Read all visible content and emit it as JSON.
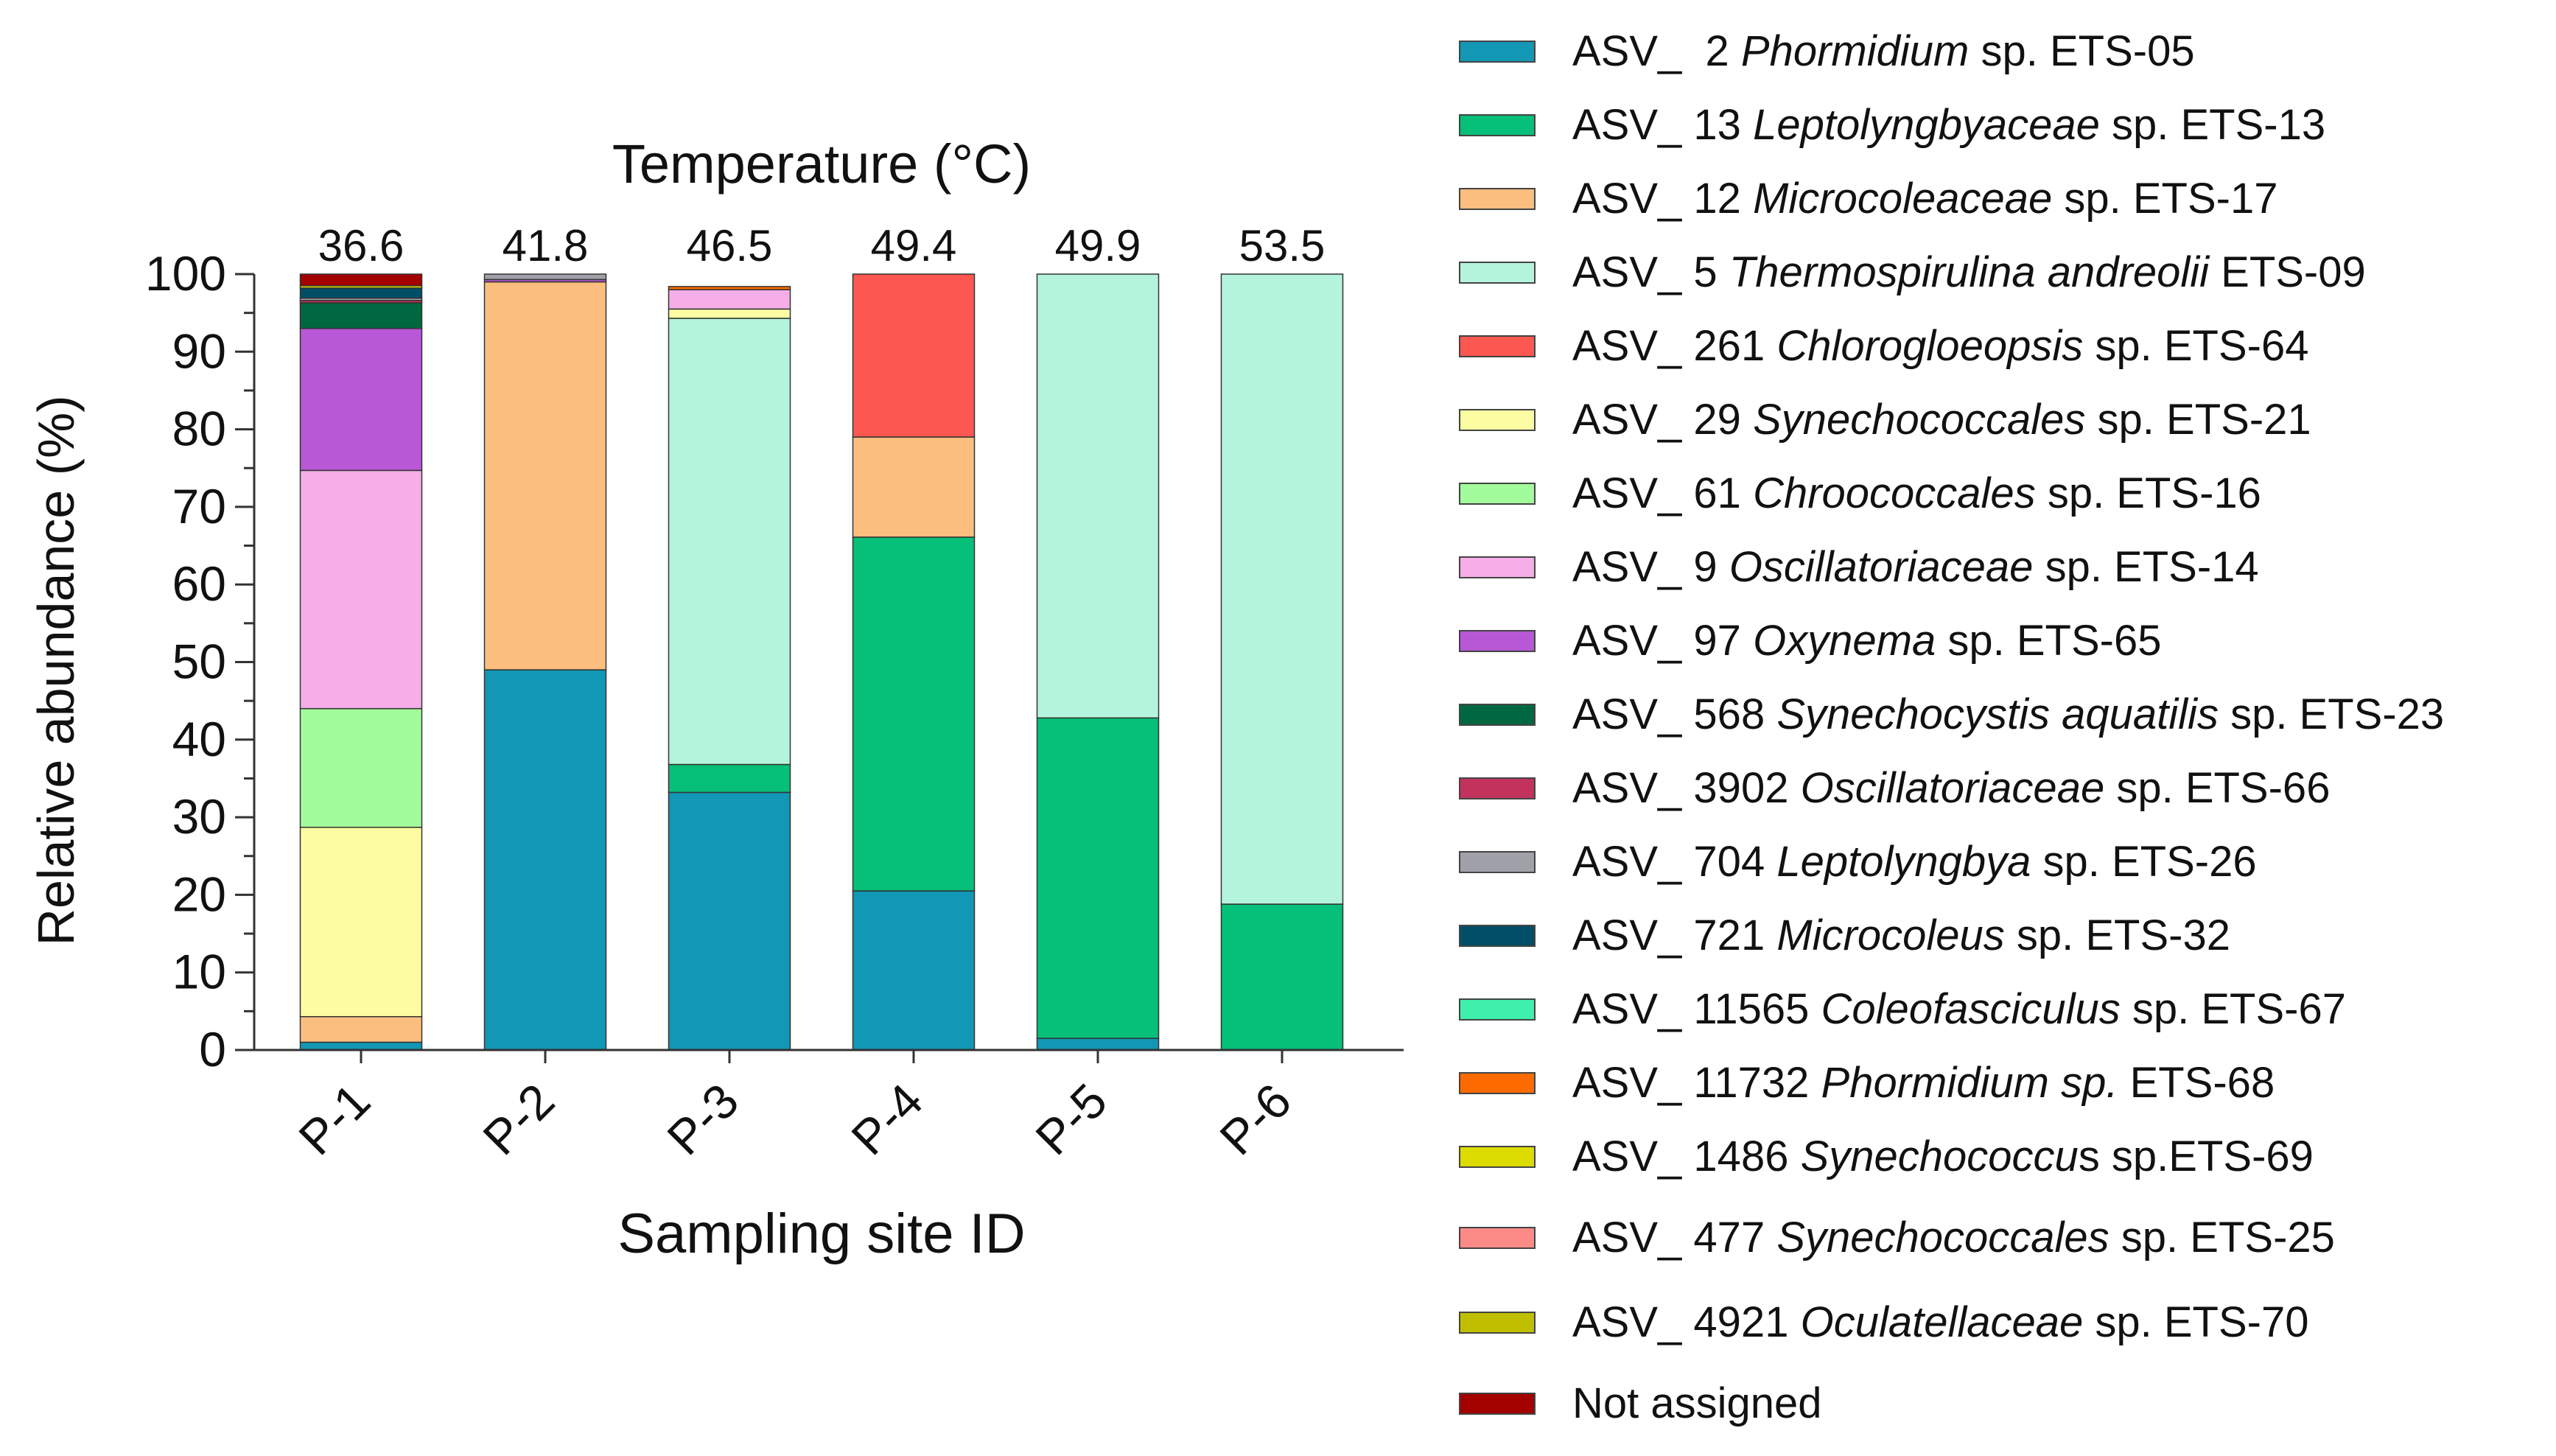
{
  "chart_data": {
    "type": "bar",
    "stacked": true,
    "title": "Temperature (°C)",
    "xlabel": "Sampling site ID",
    "ylabel": "Relative abundance (%)",
    "ylim": [
      0,
      100
    ],
    "yticks": [
      0,
      10,
      20,
      30,
      40,
      50,
      60,
      70,
      80,
      90,
      100
    ],
    "categories": [
      "P-1",
      "P-2",
      "P-3",
      "P-4",
      "P-5",
      "P-6"
    ],
    "temperatures": [
      "36.6",
      "41.8",
      "46.5",
      "49.4",
      "49.9",
      "53.5"
    ],
    "legend_position": "right",
    "series": [
      {
        "id": "asv2",
        "prefix": "ASV_  2 ",
        "taxon": "Phormidium",
        "suffix": " sp. ETS-05",
        "color": "#1297b5",
        "values": [
          1,
          49,
          33.2,
          20.5,
          1.5,
          0
        ]
      },
      {
        "id": "asv13",
        "prefix": "ASV_ 13 ",
        "taxon": "Leptolyngbyaceae",
        "suffix": " sp. ETS-13",
        "color": "#06bf78",
        "values": [
          0,
          0,
          3.6,
          45.6,
          41.3,
          18.8
        ]
      },
      {
        "id": "asv12",
        "prefix": "ASV_ 12 ",
        "taxon": "Microcoleaceae",
        "suffix": " sp. ETS-17",
        "color": "#fcbe7f",
        "values": [
          3.3,
          50,
          0,
          12.9,
          0,
          0
        ]
      },
      {
        "id": "asv5",
        "prefix": "ASV_ 5 ",
        "taxon": "Thermospirulina andreolii",
        "suffix": " ETS-09",
        "color": "#b4f4dc",
        "values": [
          0,
          0,
          57.5,
          0,
          57.2,
          81.2
        ]
      },
      {
        "id": "asv261",
        "prefix": "ASV_ 261 ",
        "taxon": "Chlorogloeopsis",
        "suffix": " sp. ETS-64",
        "color": "#fc5750",
        "values": [
          0,
          0,
          0,
          21,
          0,
          0
        ]
      },
      {
        "id": "asv29",
        "prefix": "ASV_ 29 ",
        "taxon": "Synechococcales",
        "suffix": " sp. ETS-21",
        "color": "#fcfca2",
        "values": [
          24.4,
          0,
          1.2,
          0,
          0,
          0
        ]
      },
      {
        "id": "asv61",
        "prefix": "ASV_ 61 ",
        "taxon": "Chroococcales",
        "suffix": " sp. ETS-16",
        "color": "#a3fc9c",
        "values": [
          15.3,
          0,
          0,
          0,
          0,
          0
        ]
      },
      {
        "id": "asv9",
        "prefix": "ASV_ 9 ",
        "taxon": "Oscillatoriaceae",
        "suffix": " sp. ETS-14",
        "color": "#f5aee7",
        "values": [
          30.7,
          0,
          2.5,
          0,
          0,
          0
        ]
      },
      {
        "id": "asv97",
        "prefix": "ASV_ 97 ",
        "taxon": "Oxynema",
        "suffix": " sp. ETS-65",
        "color": "#b858d6",
        "values": [
          18.3,
          0.3,
          0,
          0,
          0,
          0
        ]
      },
      {
        "id": "asv568",
        "prefix": "ASV_ 568 ",
        "taxon": "Synechocystis aquatilis",
        "suffix": " sp. ETS-23",
        "color": "#006840",
        "values": [
          3.3,
          0,
          0,
          0,
          0,
          0
        ]
      },
      {
        "id": "asv3902",
        "prefix": "ASV_ 3902 ",
        "taxon": "Oscillatoriaceae",
        "suffix": " sp. ETS-66",
        "color": "#c2325c",
        "values": [
          0.3,
          0,
          0,
          0,
          0,
          0
        ]
      },
      {
        "id": "asv704",
        "prefix": "ASV_ 704 ",
        "taxon": "Leptolyngbya",
        "suffix": " sp. ETS-26",
        "color": "#a0a0a8",
        "values": [
          0.3,
          0.7,
          0,
          0,
          0,
          0
        ]
      },
      {
        "id": "asv721",
        "prefix": "ASV_ 721 ",
        "taxon": "Microcoleus",
        "suffix": " sp. ETS-32",
        "color": "#004f66",
        "values": [
          1.3,
          0,
          0,
          0,
          0,
          0
        ]
      },
      {
        "id": "asv11565",
        "prefix": "ASV_ 11565 ",
        "taxon": "Coleofasciculus",
        "suffix": " sp. ETS-67",
        "color": "#3ef0ac",
        "values": [
          0,
          0,
          0,
          0,
          0,
          0
        ]
      },
      {
        "id": "asv11732",
        "prefix": "ASV_ 11732 ",
        "taxon": "Phormidium sp.",
        "suffix": " ETS-68",
        "color": "#fc6a00",
        "values": [
          0,
          0,
          0.4,
          0,
          0,
          0
        ]
      },
      {
        "id": "asv1486",
        "prefix": "ASV_ 1486 ",
        "taxon": "Synechococcu",
        "suffix": "s sp.ETS-69",
        "color": "#dcdc00",
        "values": [
          0.3,
          0,
          0,
          0,
          0,
          0
        ]
      },
      {
        "id": "asv477",
        "prefix": "ASV_ 477 ",
        "taxon": "Synechococcales",
        "suffix": " sp. ETS-25",
        "color": "#fc8a86",
        "values": [
          0,
          0,
          0,
          0,
          0,
          0
        ]
      },
      {
        "id": "asv4921",
        "prefix": "ASV_ 4921 ",
        "taxon": "Oculatellaceae",
        "suffix": " sp. ETS-70",
        "color": "#bfbf00",
        "values": [
          0,
          0,
          0,
          0,
          0,
          0
        ]
      },
      {
        "id": "na",
        "prefix": "Not assigned",
        "taxon": "",
        "suffix": "",
        "color": "#a30000",
        "values": [
          1.5,
          0,
          0,
          0,
          0,
          0
        ]
      }
    ]
  }
}
